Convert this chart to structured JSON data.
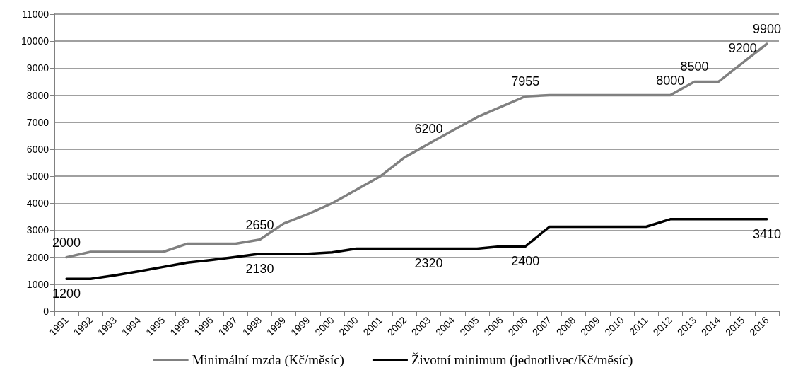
{
  "chart_data": {
    "type": "line",
    "categories": [
      "1991",
      "1992",
      "1993",
      "1994",
      "1995",
      "1996",
      "1996",
      "1997",
      "1998",
      "1999",
      "1999",
      "2000",
      "2000",
      "2001",
      "2002",
      "2003",
      "2004",
      "2005",
      "2006",
      "2006",
      "2007",
      "2008",
      "2009",
      "2010",
      "2011",
      "2012",
      "2013",
      "2014",
      "2015",
      "2016"
    ],
    "series": [
      {
        "name": "Minimální mzda (Kč/měsíc)",
        "color": "#808080",
        "values": [
          2000,
          2200,
          2200,
          2200,
          2200,
          2500,
          2500,
          2500,
          2650,
          3250,
          3600,
          4000,
          4500,
          5000,
          5700,
          6200,
          6700,
          7185,
          7570,
          7955,
          8000,
          8000,
          8000,
          8000,
          8000,
          8000,
          8500,
          8500,
          9200,
          9900
        ],
        "value_labels": [
          "2000",
          null,
          null,
          null,
          null,
          null,
          null,
          null,
          "2650",
          null,
          null,
          null,
          null,
          null,
          null,
          "6200",
          null,
          null,
          null,
          "7955",
          null,
          null,
          null,
          null,
          null,
          "8000",
          "8500",
          null,
          "9200",
          "9900"
        ]
      },
      {
        "name": "Životní minimum (jednotlivec/Kč/měsíc)",
        "color": "#000000",
        "values": [
          1200,
          1200,
          1330,
          1480,
          1640,
          1800,
          1900,
          2010,
          2130,
          2130,
          2130,
          2180,
          2320,
          2320,
          2320,
          2320,
          2320,
          2320,
          2400,
          2400,
          3130,
          3130,
          3130,
          3130,
          3130,
          3410,
          3410,
          3410,
          3410,
          3410
        ],
        "value_labels": [
          "1200",
          null,
          null,
          null,
          null,
          null,
          null,
          null,
          "2130",
          null,
          null,
          null,
          null,
          null,
          null,
          "2320",
          null,
          null,
          null,
          "2400",
          null,
          null,
          null,
          null,
          null,
          null,
          null,
          null,
          null,
          "3410"
        ]
      }
    ],
    "ylim": [
      0,
      11000
    ],
    "yticks": [
      0,
      1000,
      2000,
      3000,
      4000,
      5000,
      6000,
      7000,
      8000,
      9000,
      10000,
      11000
    ],
    "grid": "y",
    "legend": "bottom",
    "marker": "none",
    "line_style": "solid"
  }
}
